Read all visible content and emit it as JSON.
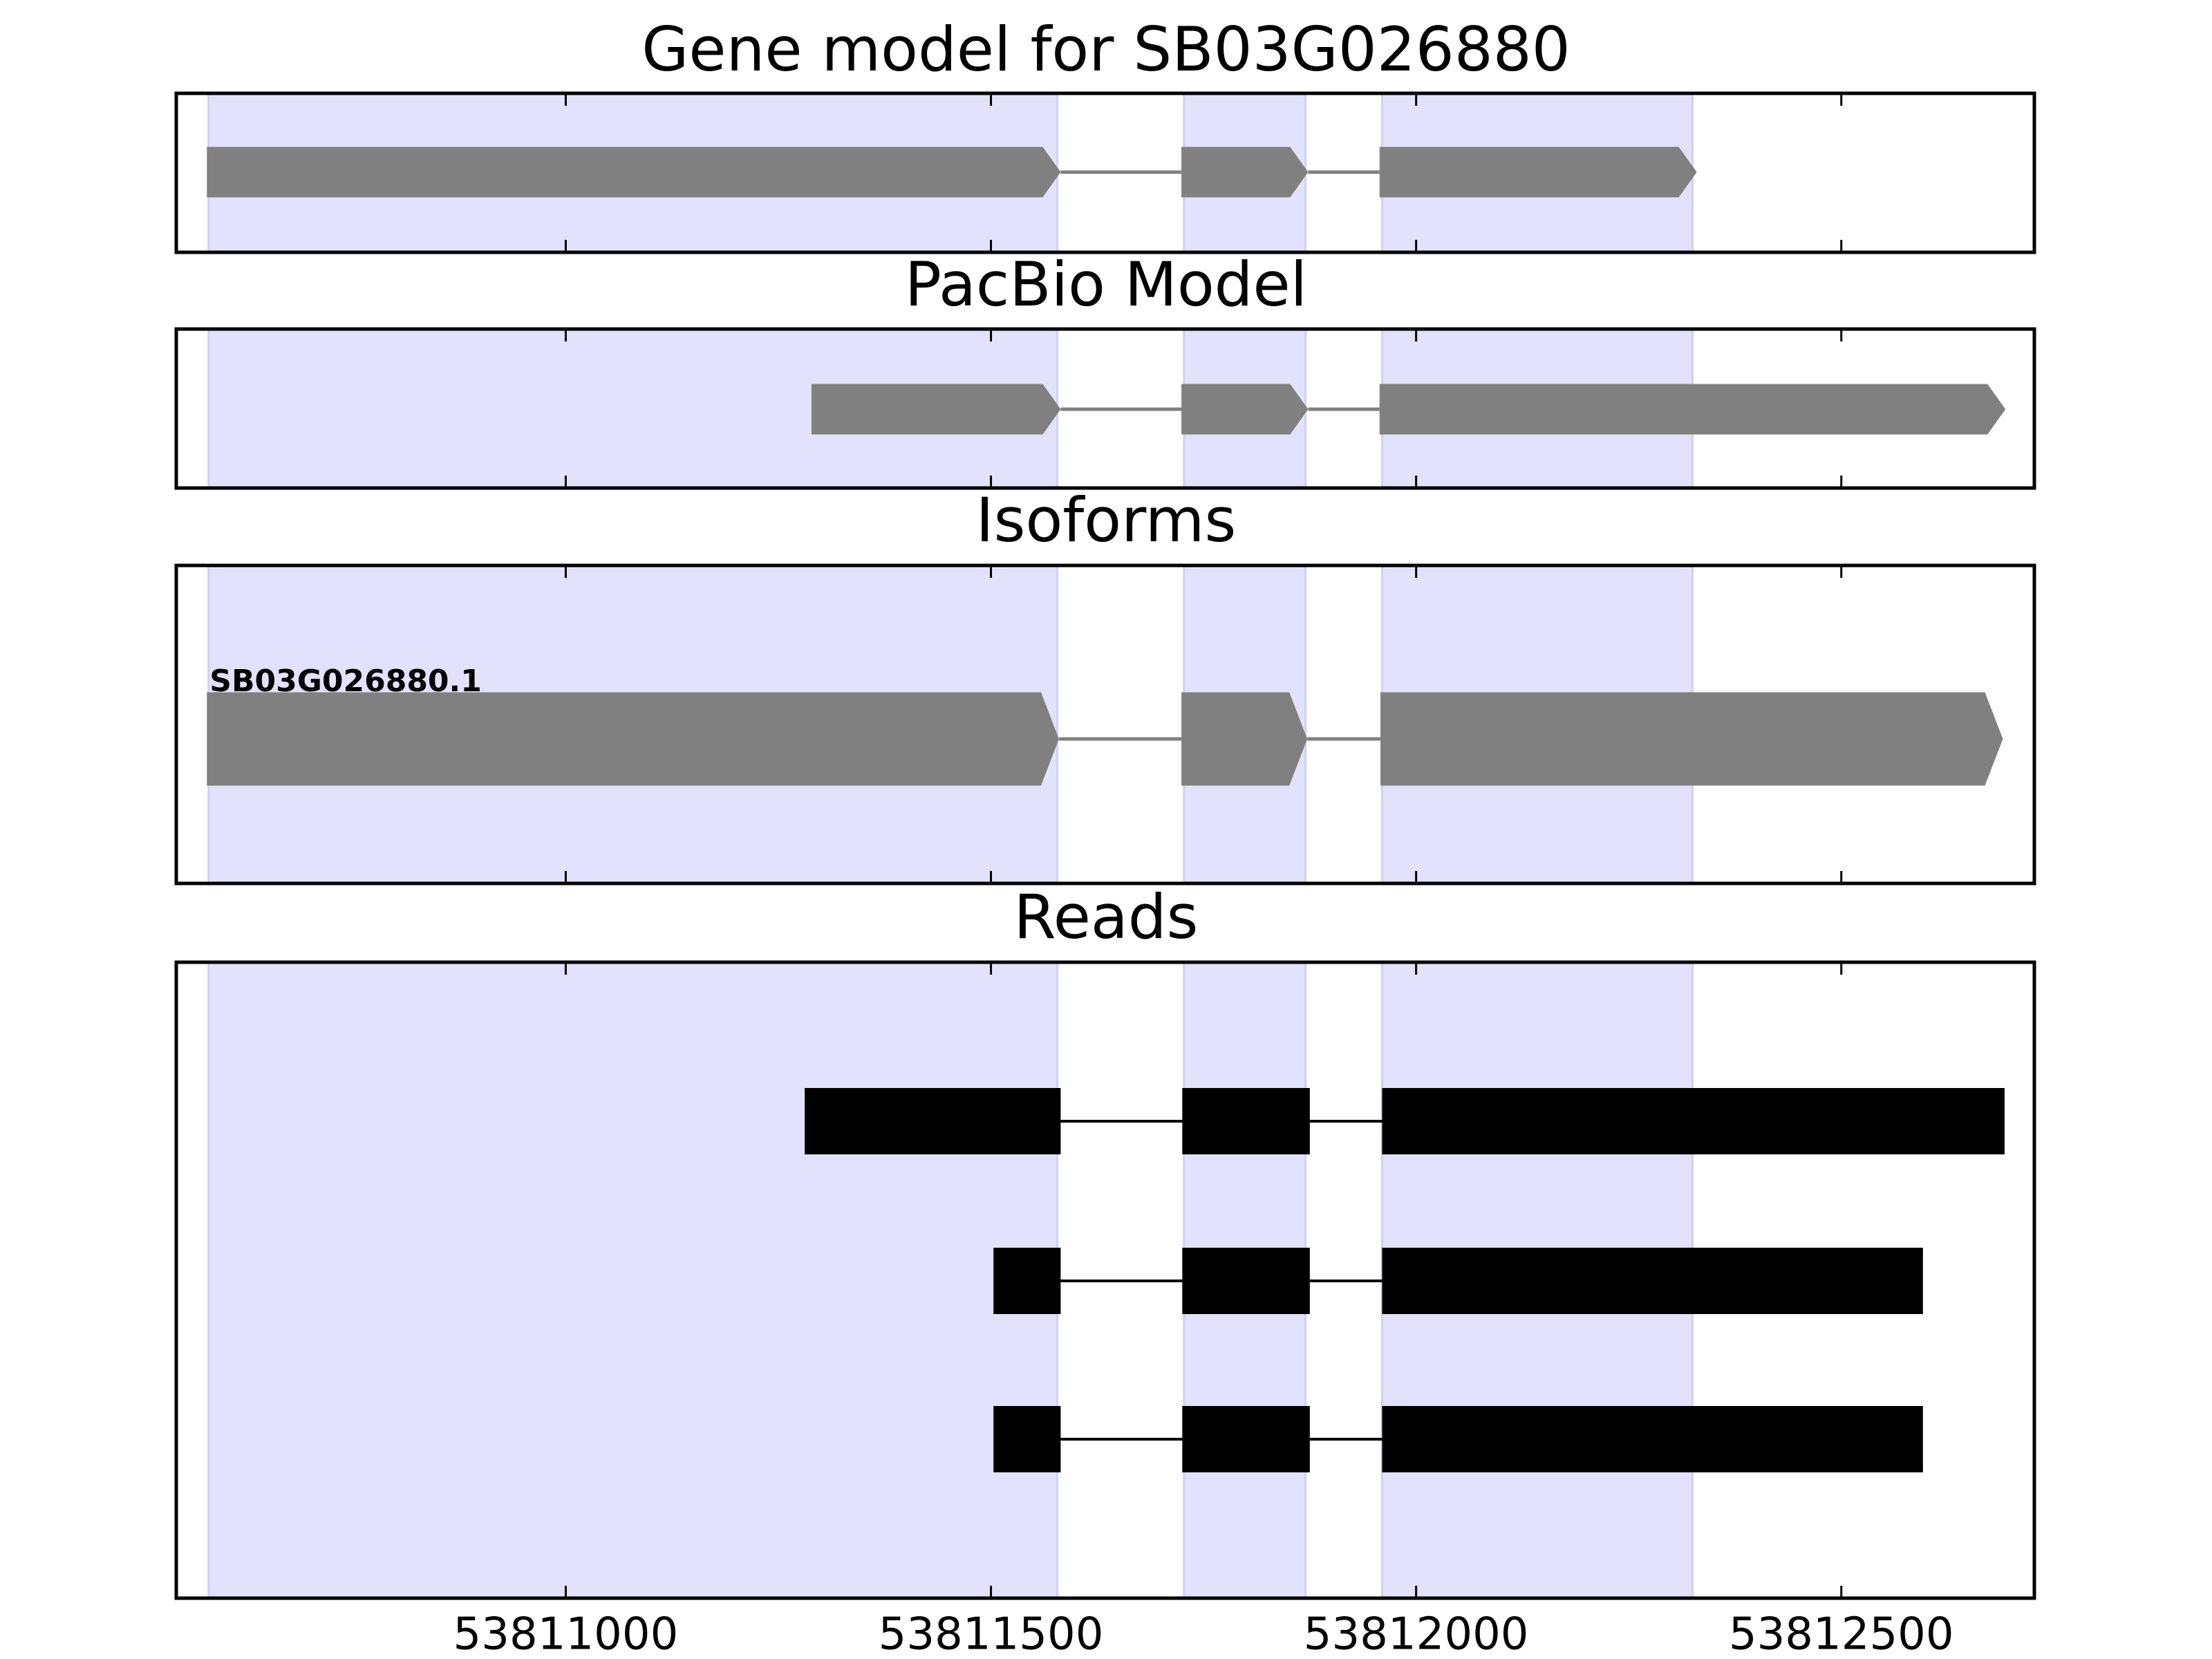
{
  "chart_data": [
    {
      "type": "gene_model",
      "title": "Gene model for SB03G026880",
      "color": "#808080",
      "highlight_color": "#e2e2fc",
      "xlim": [
        53810542,
        53812727
      ],
      "xticks": [
        53811000,
        53811500,
        53812000,
        53812500
      ],
      "highlights": [
        [
          53810580,
          53811578
        ],
        [
          53811727,
          53811870
        ],
        [
          53811960,
          53812325
        ]
      ],
      "transcripts": [
        {
          "exons": [
            [
              53810578,
              53811582
            ],
            [
              53811724,
              53811873
            ],
            [
              53811957,
              53812330
            ]
          ]
        }
      ]
    },
    {
      "type": "gene_model",
      "title": "PacBio Model",
      "color": "#808080",
      "highlight_color": "#e2e2fc",
      "xlim": [
        53810542,
        53812727
      ],
      "xticks": [
        53811000,
        53811500,
        53812000,
        53812500
      ],
      "highlights": [
        [
          53810580,
          53811578
        ],
        [
          53811727,
          53811870
        ],
        [
          53811960,
          53812325
        ]
      ],
      "transcripts": [
        {
          "exons": [
            [
              53811289,
              53811582
            ],
            [
              53811724,
              53811873
            ],
            [
              53811957,
              53812693
            ]
          ]
        }
      ]
    },
    {
      "type": "gene_model",
      "title": "Isoforms",
      "color": "#808080",
      "highlight_color": "#e2e2fc",
      "xlim": [
        53810542,
        53812727
      ],
      "xticks": [
        53811000,
        53811500,
        53812000,
        53812500
      ],
      "highlights": [
        [
          53810580,
          53811578
        ],
        [
          53811727,
          53811870
        ],
        [
          53811960,
          53812325
        ]
      ],
      "transcripts": [
        {
          "name": "SB03G026880.1",
          "exons": [
            [
              53810578,
              53811580
            ],
            [
              53811724,
              53811872
            ],
            [
              53811958,
              53812690
            ]
          ]
        }
      ]
    },
    {
      "type": "reads",
      "title": "Reads",
      "color": "#000000",
      "highlight_color": "#e2e2fc",
      "xlim": [
        53810542,
        53812727
      ],
      "xticks": [
        53811000,
        53811500,
        53812000,
        53812500
      ],
      "highlights": [
        [
          53810580,
          53811578
        ],
        [
          53811727,
          53811870
        ],
        [
          53811960,
          53812325
        ]
      ],
      "transcripts": [
        {
          "exons": [
            [
              53811281,
              53811582
            ],
            [
              53811725,
              53811875
            ],
            [
              53811960,
              53812692
            ]
          ]
        },
        {
          "exons": [
            [
              53811503,
              53811582
            ],
            [
              53811725,
              53811875
            ],
            [
              53811960,
              53812596
            ]
          ]
        },
        {
          "exons": [
            [
              53811503,
              53811582
            ],
            [
              53811725,
              53811875
            ],
            [
              53811960,
              53812596
            ]
          ]
        }
      ]
    }
  ]
}
